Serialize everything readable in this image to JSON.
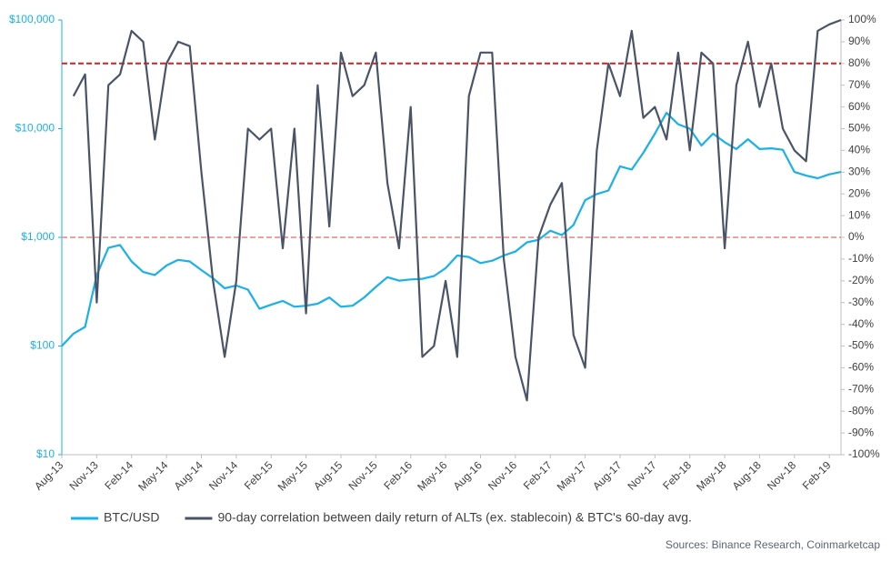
{
  "chart_data": {
    "type": "line",
    "categories": [
      "Aug-13",
      null,
      null,
      "Nov-13",
      null,
      null,
      "Feb-14",
      null,
      null,
      "May-14",
      null,
      null,
      "Aug-14",
      null,
      null,
      "Nov-14",
      null,
      null,
      "Feb-15",
      null,
      null,
      "May-15",
      null,
      null,
      "Aug-15",
      null,
      null,
      "Nov-15",
      null,
      null,
      "Feb-16",
      null,
      null,
      "May-16",
      null,
      null,
      "Aug-16",
      null,
      null,
      "Nov-16",
      null,
      null,
      "Feb-17",
      null,
      null,
      "May-17",
      null,
      null,
      "Aug-17",
      null,
      null,
      "Nov-17",
      null,
      null,
      "Feb-18",
      null,
      null,
      "May-18",
      null,
      null,
      "Aug-18",
      null,
      null,
      "Nov-18",
      null,
      null,
      "Feb-19",
      null
    ],
    "series": [
      {
        "name": "BTC/USD",
        "color": "#1ab0e8",
        "axis": "y",
        "values": [
          100,
          130,
          150,
          450,
          800,
          850,
          600,
          480,
          450,
          550,
          620,
          600,
          500,
          420,
          340,
          360,
          330,
          220,
          240,
          260,
          230,
          235,
          245,
          280,
          230,
          235,
          280,
          350,
          430,
          400,
          410,
          415,
          440,
          520,
          680,
          660,
          580,
          610,
          680,
          740,
          900,
          950,
          1150,
          1050,
          1300,
          2200,
          2500,
          2700,
          4500,
          4200,
          6000,
          9000,
          14000,
          11000,
          10000,
          7000,
          9000,
          7500,
          6500,
          8000,
          6500,
          6600,
          6400,
          4000,
          3700,
          3500,
          3800,
          4000
        ]
      },
      {
        "name": "90-day correlation between daily return of ALTs (ex. stablecoin) & BTC's 60-day avg.",
        "color": "#4a5468",
        "axis": "y2",
        "values": [
          null,
          65,
          75,
          -30,
          70,
          75,
          95,
          90,
          45,
          80,
          90,
          88,
          30,
          -20,
          -55,
          -20,
          50,
          45,
          50,
          -5,
          50,
          -35,
          70,
          5,
          85,
          65,
          70,
          85,
          25,
          -5,
          60,
          -55,
          -50,
          -20,
          -55,
          65,
          85,
          85,
          -10,
          -55,
          -75,
          0,
          15,
          25,
          -45,
          -60,
          40,
          80,
          65,
          95,
          55,
          60,
          45,
          85,
          40,
          85,
          80,
          -5,
          70,
          90,
          60,
          80,
          50,
          40,
          35,
          95,
          98,
          100
        ]
      }
    ],
    "ylim": [
      10,
      100000
    ],
    "log_y": true,
    "yticks": [
      {
        "value": 10,
        "label": "$10"
      },
      {
        "value": 100,
        "label": "$100"
      },
      {
        "value": 1000,
        "label": "$1,000"
      },
      {
        "value": 10000,
        "label": "$10,000"
      },
      {
        "value": 100000,
        "label": "$100,000"
      }
    ],
    "y2lim": [
      -100,
      100
    ],
    "y2ticks": [
      {
        "value": -100,
        "label": "-100%"
      },
      {
        "value": -90,
        "label": "-90%"
      },
      {
        "value": -80,
        "label": "-80%"
      },
      {
        "value": -70,
        "label": "-70%"
      },
      {
        "value": -60,
        "label": "-60%"
      },
      {
        "value": -50,
        "label": "-50%"
      },
      {
        "value": -40,
        "label": "-40%"
      },
      {
        "value": -30,
        "label": "-30%"
      },
      {
        "value": -20,
        "label": "-20%"
      },
      {
        "value": -10,
        "label": "-10%"
      },
      {
        "value": 0,
        "label": "0%"
      },
      {
        "value": 10,
        "label": "10%"
      },
      {
        "value": 20,
        "label": "20%"
      },
      {
        "value": 30,
        "label": "30%"
      },
      {
        "value": 40,
        "label": "40%"
      },
      {
        "value": 50,
        "label": "50%"
      },
      {
        "value": 60,
        "label": "60%"
      },
      {
        "value": 70,
        "label": "70%"
      },
      {
        "value": 80,
        "label": "80%"
      },
      {
        "value": 90,
        "label": "90%"
      },
      {
        "value": 100,
        "label": "100%"
      }
    ],
    "reference_lines": [
      {
        "value": 80,
        "axis": "y2",
        "color": "#d42020"
      },
      {
        "value": 0,
        "axis": "y2",
        "color": "#f0a0a0"
      }
    ],
    "source": "Sources: Binance Research, Coinmarketcap"
  }
}
